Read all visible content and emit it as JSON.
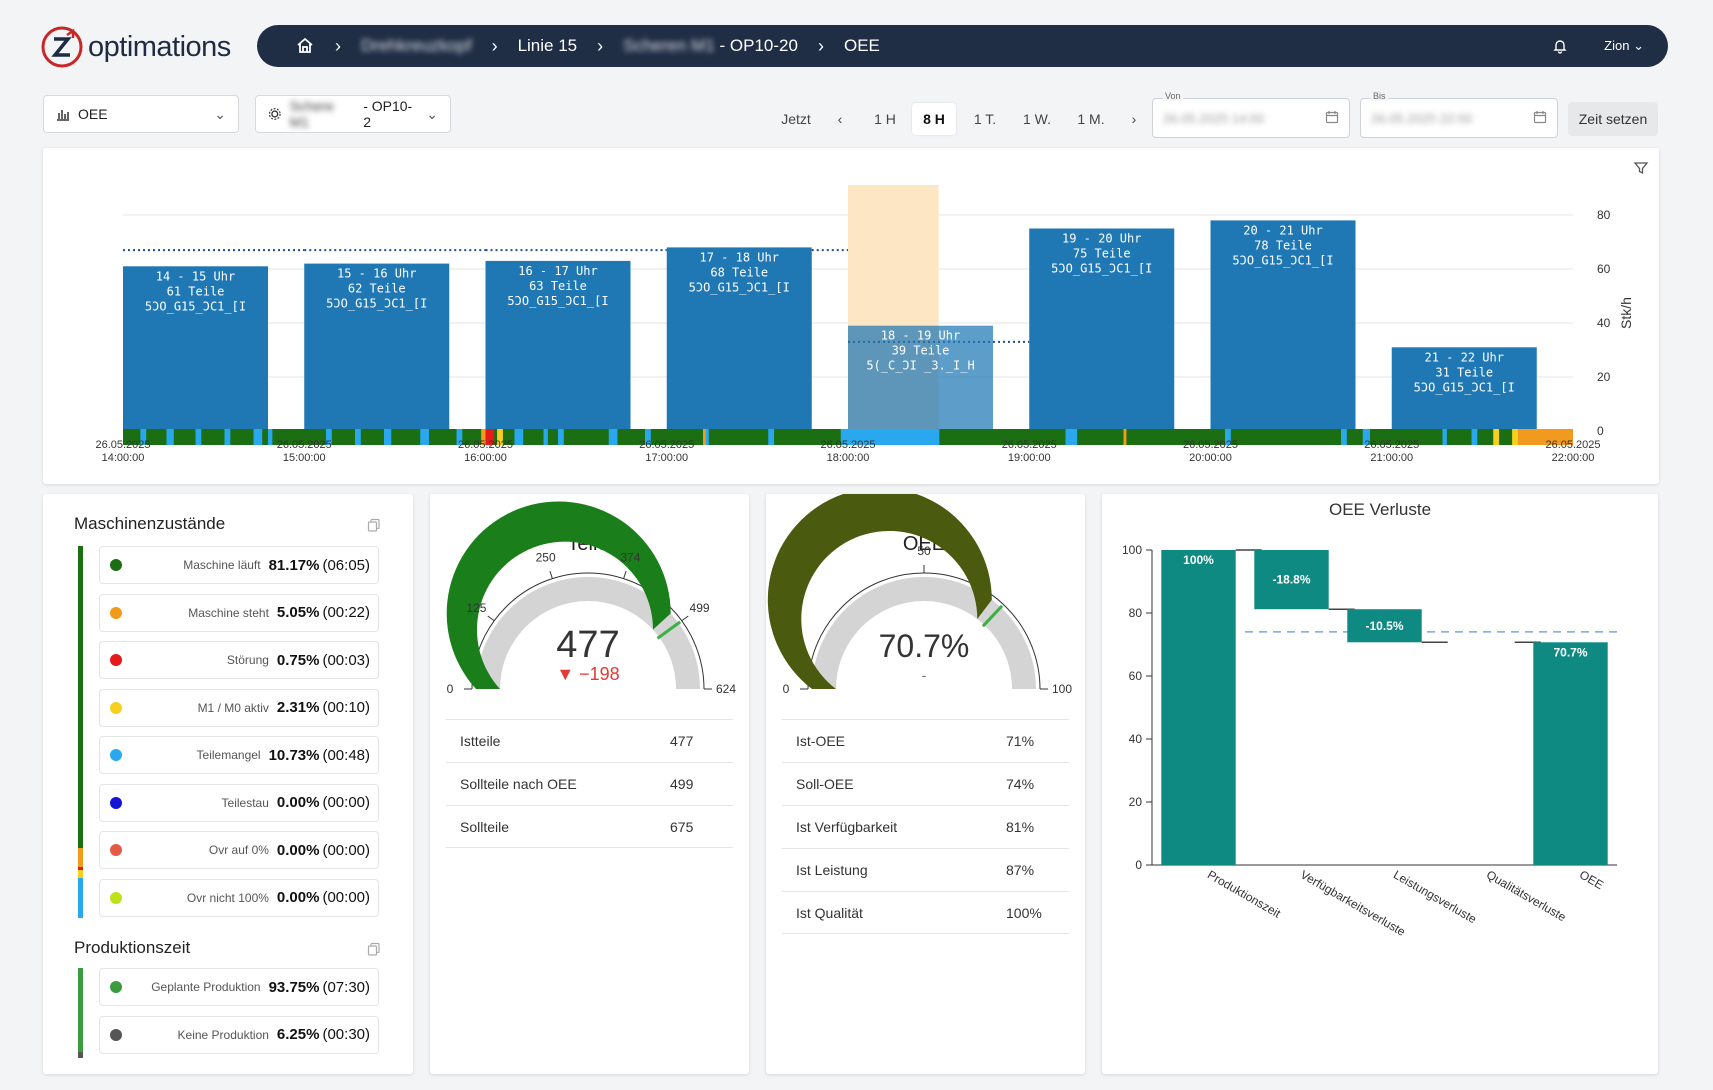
{
  "brand": {
    "logo_text": "optimations"
  },
  "breadcrumb": {
    "level1": "Drehkreuzkopf",
    "level2": "Linie 15",
    "level3_blur": "Scheren M1",
    "level3": "- OP10-20",
    "level4": "OEE"
  },
  "header": {
    "user": "Zion"
  },
  "toolbar": {
    "metric_select": "OEE",
    "machine_select_blur": "Schere M1",
    "machine_select": "- OP10-2",
    "jetzt": "Jetzt",
    "ranges": [
      "1 H",
      "8 H",
      "1 T.",
      "1 W.",
      "1 M."
    ],
    "active_range": "8 H",
    "von_label": "Von",
    "von_value": "26.05.2025 14:00",
    "bis_label": "Bis",
    "bis_value": "26.05.2025 22:00",
    "set_time": "Zeit setzen"
  },
  "chart_data": {
    "type": "bar",
    "ylabel": "Stk/h",
    "ylim": [
      0,
      90
    ],
    "yticks": [
      0,
      20,
      40,
      60,
      80
    ],
    "x_ticks": [
      [
        "26.05.2025",
        "14:00:00"
      ],
      [
        "26.05.2025",
        "15:00:00"
      ],
      [
        "26.05.2025",
        "16:00:00"
      ],
      [
        "26.05.2025",
        "17:00:00"
      ],
      [
        "26.05.2025",
        "18:00:00"
      ],
      [
        "26.05.2025",
        "19:00:00"
      ],
      [
        "26.05.2025",
        "20:00:00"
      ],
      [
        "26.05.2025",
        "21:00:00"
      ],
      [
        "26.05.2025",
        "22:00:00"
      ]
    ],
    "bars": [
      {
        "hour": "14 - 15 Uhr",
        "teile": "61 Teile",
        "program": "5ƆO_G15_ƆC1_[I",
        "value": 61
      },
      {
        "hour": "15 - 16 Uhr",
        "teile": "62 Teile",
        "program": "5ƆO_G15_ƆC1_[I",
        "value": 62
      },
      {
        "hour": "16 - 17 Uhr",
        "teile": "63 Teile",
        "program": "5ƆO_G15_ƆC1_[I",
        "value": 63
      },
      {
        "hour": "17 - 18 Uhr",
        "teile": "68 Teile",
        "program": "5ƆO_G15_ƆC1_[I",
        "value": 68
      },
      {
        "hour": "18 - 19 Uhr",
        "teile": "39 Teile",
        "program": "5(_C_ƆI _3._I_H",
        "value": 39
      },
      {
        "hour": "19 - 20 Uhr",
        "teile": "75 Teile",
        "program": "5ƆO_G15_ƆC1_[I",
        "value": 75
      },
      {
        "hour": "20 - 21 Uhr",
        "teile": "78 Teile",
        "program": "5ƆO_G15_ƆC1_[I",
        "value": 78
      },
      {
        "hour": "21 - 22 Uhr",
        "teile": "31 Teile",
        "program": "5ƆO_G15_ƆC1_[I",
        "value": 31
      }
    ],
    "target_line": [
      67,
      67,
      67,
      67,
      33,
      null,
      null,
      null
    ],
    "highlight_hour_index": 4,
    "colors": {
      "bar": "#1f77b4",
      "target": "#1f4e8c",
      "highlight": "#fde6c4"
    }
  },
  "states": {
    "title": "Maschinenzustände",
    "items": [
      {
        "label": "Maschine läuft",
        "pct": "81.17%",
        "dur": "(06:05)",
        "color": "#1b6e12"
      },
      {
        "label": "Maschine steht",
        "pct": "5.05%",
        "dur": "(00:22)",
        "color": "#f29a1e"
      },
      {
        "label": "Störung",
        "pct": "0.75%",
        "dur": "(00:03)",
        "color": "#e31b1b"
      },
      {
        "label": "M1 / M0 aktiv",
        "pct": "2.31%",
        "dur": "(00:10)",
        "color": "#f7cf1e"
      },
      {
        "label": "Teilemangel",
        "pct": "10.73%",
        "dur": "(00:48)",
        "color": "#2aa8ef"
      },
      {
        "label": "Teilestau",
        "pct": "0.00%",
        "dur": "(00:00)",
        "color": "#1414d4"
      },
      {
        "label": "Ovr auf 0%",
        "pct": "0.00%",
        "dur": "(00:00)",
        "color": "#e55a46"
      },
      {
        "label": "Ovr nicht 100%",
        "pct": "0.00%",
        "dur": "(00:00)",
        "color": "#bde21b"
      }
    ]
  },
  "production": {
    "title": "Produktionszeit",
    "items": [
      {
        "label": "Geplante Produktion",
        "pct": "93.75%",
        "dur": "(07:30)",
        "color": "#3a9b3f"
      },
      {
        "label": "Keine Produktion",
        "pct": "6.25%",
        "dur": "(00:30)",
        "color": "#555555"
      }
    ]
  },
  "teile": {
    "title": "Teile",
    "value": "477",
    "delta": "▼ −198",
    "min": 0,
    "max": 624,
    "target": 499,
    "ticks": [
      "0",
      "125",
      "250",
      "374",
      "499",
      "624"
    ],
    "rows": [
      {
        "label": "Istteile",
        "value": "477"
      },
      {
        "label": "Sollteile nach OEE",
        "value": "499"
      },
      {
        "label": "Sollteile",
        "value": "675"
      }
    ]
  },
  "oee": {
    "title": "OEE",
    "value": "70.7%",
    "sub": "-",
    "min": 0,
    "max": 100,
    "target": 74,
    "ticks": [
      "0",
      "50",
      "100"
    ],
    "rows": [
      {
        "label": "Ist-OEE",
        "value": "71%"
      },
      {
        "label": "Soll-OEE",
        "value": "74%"
      },
      {
        "label": "Ist Verfügbarkeit",
        "value": "81%"
      },
      {
        "label": "Ist Leistung",
        "value": "87%"
      },
      {
        "label": "Ist Qualität",
        "value": "100%"
      }
    ]
  },
  "losses": {
    "title": "OEE Verluste",
    "yticks": [
      0,
      20,
      40,
      60,
      80,
      100
    ],
    "target": 74,
    "steps": [
      {
        "name": "Produktionszeit",
        "from": 0,
        "to": 100,
        "label": "100%",
        "shown": true
      },
      {
        "name": "Verfügbarkeitsverluste",
        "from": 81.2,
        "to": 100,
        "label": "-18.8%",
        "shown": true
      },
      {
        "name": "Leistungsverluste",
        "from": 70.7,
        "to": 81.2,
        "label": "-10.5%",
        "shown": true
      },
      {
        "name": "Qualitätsverluste",
        "from": 70.7,
        "to": 70.7,
        "label": "",
        "shown": false
      },
      {
        "name": "OEE",
        "from": 0,
        "to": 70.7,
        "label": "70.7%",
        "shown": true
      }
    ],
    "color": "#0e8a83"
  }
}
